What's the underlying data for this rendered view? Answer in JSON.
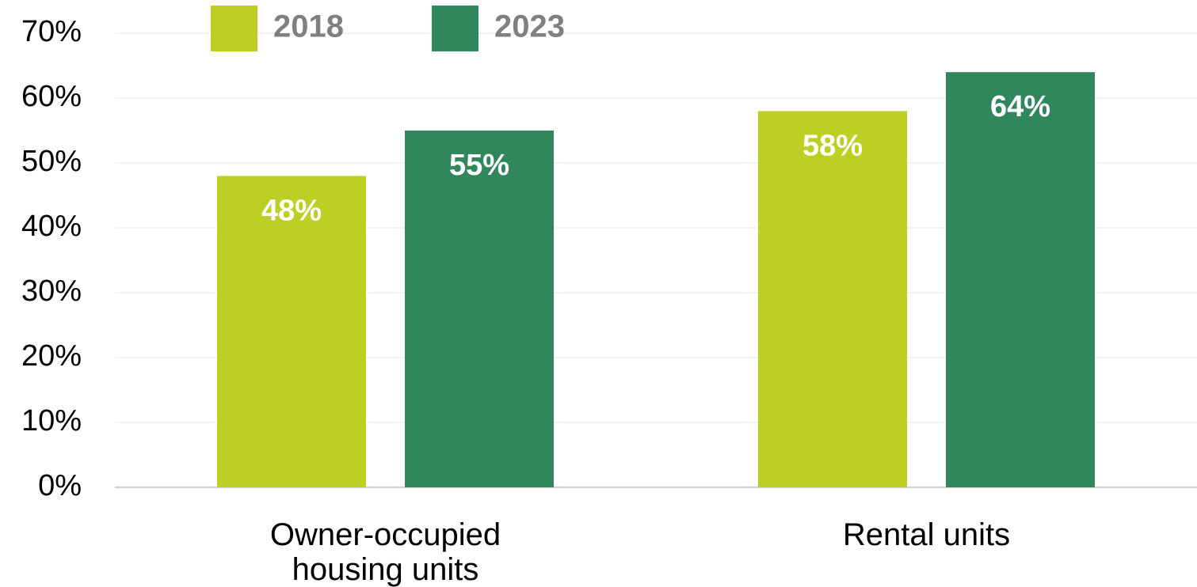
{
  "chart_data": {
    "type": "bar",
    "categories": [
      "Owner-occupied housing units",
      "Rental units"
    ],
    "series": [
      {
        "name": "2018",
        "color": "#bccf22",
        "values": [
          48,
          58
        ],
        "value_labels": [
          "48%",
          "58%"
        ]
      },
      {
        "name": "2023",
        "color": "#31875c",
        "values": [
          55,
          64
        ],
        "value_labels": [
          "55%",
          "64%"
        ]
      }
    ],
    "ylim": [
      0,
      70
    ],
    "yticks": [
      {
        "value": 0,
        "label": "0%"
      },
      {
        "value": 10,
        "label": "10%"
      },
      {
        "value": 20,
        "label": "20%"
      },
      {
        "value": 30,
        "label": "30%"
      },
      {
        "value": 40,
        "label": "40%"
      },
      {
        "value": 50,
        "label": "50%"
      },
      {
        "value": 60,
        "label": "60%"
      },
      {
        "value": 70,
        "label": "70%"
      }
    ],
    "grid": true,
    "legend": "top"
  }
}
